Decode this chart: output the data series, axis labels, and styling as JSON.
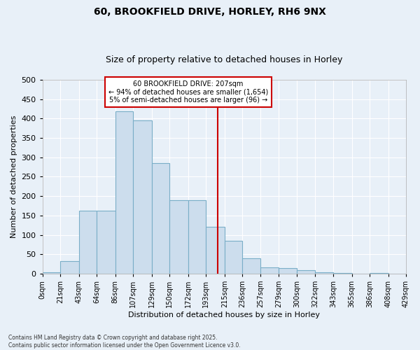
{
  "title": "60, BROOKFIELD DRIVE, HORLEY, RH6 9NX",
  "subtitle": "Size of property relative to detached houses in Horley",
  "xlabel": "Distribution of detached houses by size in Horley",
  "ylabel": "Number of detached properties",
  "bar_color": "#ccdded",
  "bar_edge_color": "#7aaec8",
  "background_color": "#e8f0f8",
  "grid_color": "#ffffff",
  "vline_x": 207,
  "vline_color": "#cc0000",
  "annotation_text": "60 BROOKFIELD DRIVE: 207sqm\n← 94% of detached houses are smaller (1,654)\n5% of semi-detached houses are larger (96) →",
  "annotation_box_color": "#ffffff",
  "annotation_box_edge": "#cc0000",
  "bins": [
    0,
    21,
    43,
    64,
    86,
    107,
    129,
    150,
    172,
    193,
    215,
    236,
    257,
    279,
    300,
    322,
    343,
    365,
    386,
    408,
    429
  ],
  "values": [
    4,
    33,
    163,
    163,
    418,
    395,
    285,
    190,
    190,
    121,
    85,
    40,
    17,
    15,
    9,
    4,
    2,
    0,
    2,
    0
  ],
  "ylim": [
    0,
    500
  ],
  "yticks": [
    0,
    50,
    100,
    150,
    200,
    250,
    300,
    350,
    400,
    450,
    500
  ],
  "footer": "Contains HM Land Registry data © Crown copyright and database right 2025.\nContains public sector information licensed under the Open Government Licence v3.0.",
  "title_fontsize": 10,
  "subtitle_fontsize": 9,
  "tick_fontsize": 7,
  "ylabel_fontsize": 8,
  "xlabel_fontsize": 8
}
